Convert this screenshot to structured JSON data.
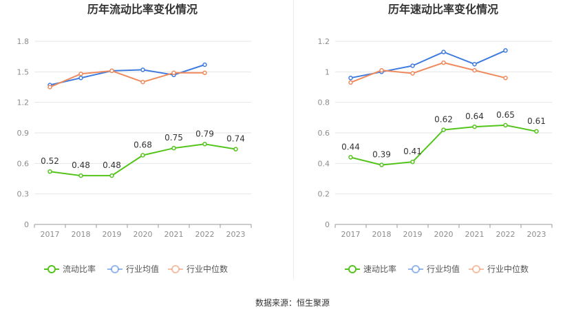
{
  "source": "数据来源：恒生聚源",
  "colors": {
    "main": "#52c41a",
    "avg": "#3e7be0",
    "median": "#f08a5d",
    "grid": "#e6e6e6",
    "axis": "#999999"
  },
  "chart_data": [
    {
      "type": "line",
      "title": "历年流动比率变化情况",
      "categories": [
        "2017",
        "2018",
        "2019",
        "2020",
        "2021",
        "2022",
        "2023"
      ],
      "ylim": [
        0,
        1.8
      ],
      "yticks": [
        "0",
        "0.3",
        "0.6",
        "0.9",
        "1.2",
        "1.5",
        "1.8"
      ],
      "grid": true,
      "legend_position": "bottom",
      "series": [
        {
          "name": "流动比率",
          "color": "#52c41a",
          "values": [
            0.52,
            0.48,
            0.48,
            0.68,
            0.75,
            0.79,
            0.74
          ],
          "labels": [
            "0.52",
            "0.48",
            "0.48",
            "0.68",
            "0.75",
            "0.79",
            "0.74"
          ]
        },
        {
          "name": "行业均值",
          "color": "#3e7be0",
          "values": [
            1.37,
            1.44,
            1.51,
            1.52,
            1.47,
            1.57,
            null
          ]
        },
        {
          "name": "行业中位数",
          "color": "#f08a5d",
          "values": [
            1.35,
            1.48,
            1.51,
            1.4,
            1.49,
            1.49,
            null
          ]
        }
      ]
    },
    {
      "type": "line",
      "title": "历年速动比率变化情况",
      "categories": [
        "2017",
        "2018",
        "2019",
        "2020",
        "2021",
        "2022",
        "2023"
      ],
      "ylim": [
        0,
        1.2
      ],
      "yticks": [
        "0",
        "0.2",
        "0.4",
        "0.6",
        "0.8",
        "1",
        "1.2"
      ],
      "grid": true,
      "legend_position": "bottom",
      "series": [
        {
          "name": "速动比率",
          "color": "#52c41a",
          "values": [
            0.44,
            0.39,
            0.41,
            0.62,
            0.64,
            0.65,
            0.61
          ],
          "labels": [
            "0.44",
            "0.39",
            "0.41",
            "0.62",
            "0.64",
            "0.65",
            "0.61"
          ]
        },
        {
          "name": "行业均值",
          "color": "#3e7be0",
          "values": [
            0.96,
            1.0,
            1.04,
            1.13,
            1.05,
            1.14,
            null
          ]
        },
        {
          "name": "行业中位数",
          "color": "#f08a5d",
          "values": [
            0.93,
            1.01,
            0.99,
            1.06,
            1.01,
            0.96,
            null
          ]
        }
      ]
    }
  ]
}
